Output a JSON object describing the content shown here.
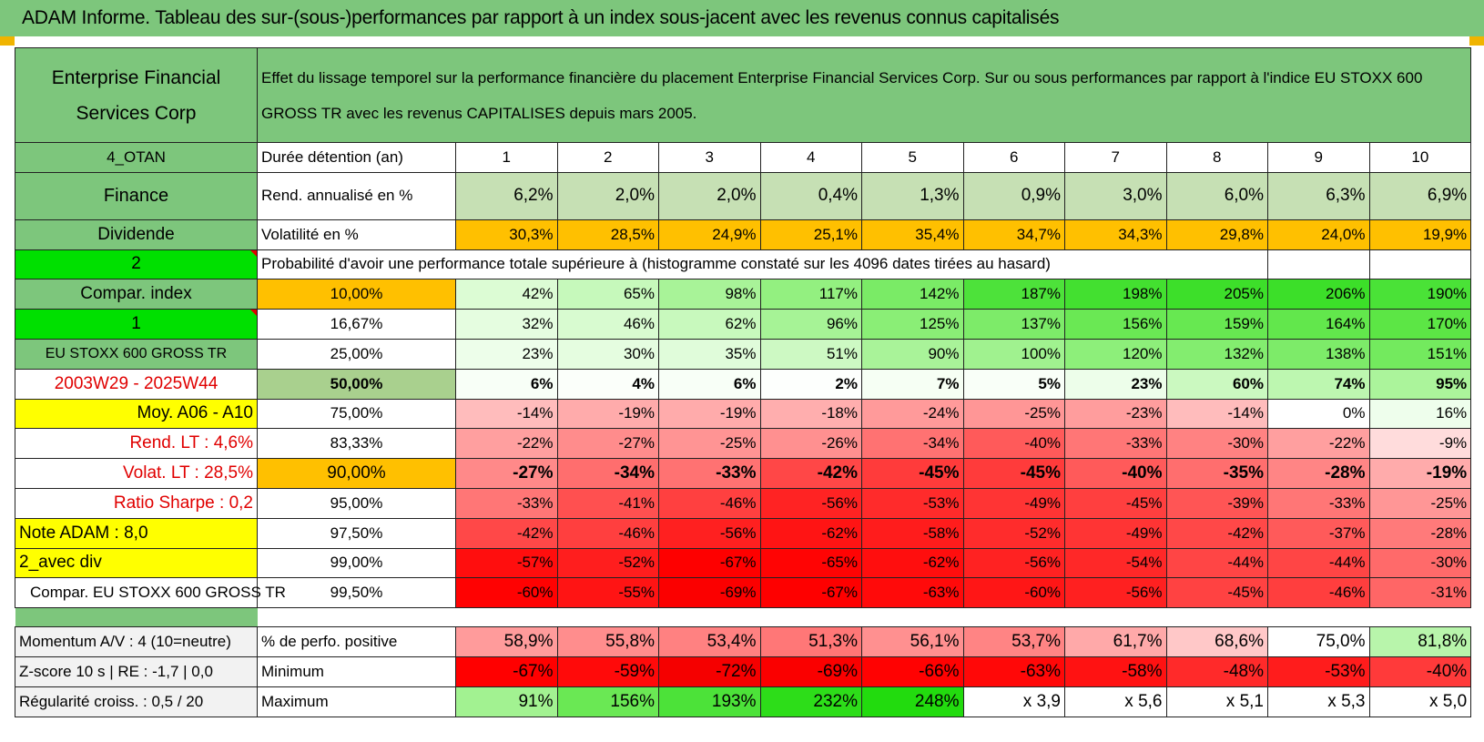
{
  "title": "ADAM Informe. Tableau des sur-(sous-)performances par rapport à un index sous-jacent avec les revenus connus capitalisés",
  "header": {
    "company": "Enterprise Financial Services Corp",
    "description": "Effet du lissage temporel sur la performance financière du placement Enterprise Financial Services Corp. Sur ou sous performances par rapport à l'indice EU STOXX 600 GROSS TR avec les revenus CAPITALISES depuis mars 2005."
  },
  "labels": {
    "otan": "4_OTAN",
    "finance": "Finance",
    "dividende": "Dividende",
    "two": "2",
    "compar_index": "Compar. index",
    "one": "1",
    "index_name": "EU STOXX 600 GROSS TR",
    "period": "2003W29 - 2025W44",
    "moy": "Moy. A06 - A10",
    "rend_lt": "Rend. LT :    4,6%",
    "volat_lt": "Volat. LT :    28,5%",
    "sharpe": "Ratio Sharpe :    0,2",
    "note": "Note ADAM : 8,0",
    "avec_div": "2_avec div",
    "compar_eu": "Compar. EU STOXX 600 GROSS TR",
    "momentum": "Momentum A/V : 4 (10=neutre)",
    "zscore": "Z-score 10 s | RE : -1,7 | 0,0",
    "regularite": "Régularité croiss. : 0,5 / 20"
  },
  "stats": {
    "duree_label": "Durée détention (an)",
    "years": [
      "1",
      "2",
      "3",
      "4",
      "5",
      "6",
      "7",
      "8",
      "9",
      "10"
    ],
    "rend_label": "Rend. annualisé en %",
    "rend": [
      "6,2%",
      "2,0%",
      "2,0%",
      "0,4%",
      "1,3%",
      "0,9%",
      "3,0%",
      "6,0%",
      "6,3%",
      "6,9%"
    ],
    "vol_label": "Volatilité en %",
    "vol": [
      "30,3%",
      "28,5%",
      "24,9%",
      "25,1%",
      "35,4%",
      "34,7%",
      "34,3%",
      "29,8%",
      "24,0%",
      "19,9%"
    ],
    "prob_header": "Probabilité d'avoir une performance totale supérieure à (histogramme constaté sur les 4096 dates tirées au hasard)"
  },
  "quantile_rows": [
    {
      "q": "10,00%",
      "values": [
        "42%",
        "65%",
        "98%",
        "117%",
        "142%",
        "187%",
        "198%",
        "205%",
        "206%",
        "190%"
      ]
    },
    {
      "q": "16,67%",
      "values": [
        "32%",
        "46%",
        "62%",
        "96%",
        "125%",
        "137%",
        "156%",
        "159%",
        "164%",
        "170%"
      ]
    },
    {
      "q": "25,00%",
      "values": [
        "23%",
        "30%",
        "35%",
        "51%",
        "90%",
        "100%",
        "120%",
        "132%",
        "138%",
        "151%"
      ]
    },
    {
      "q": "50,00%",
      "values": [
        "6%",
        "4%",
        "6%",
        "2%",
        "7%",
        "5%",
        "23%",
        "60%",
        "74%",
        "95%"
      ]
    },
    {
      "q": "75,00%",
      "values": [
        "-14%",
        "-19%",
        "-19%",
        "-18%",
        "-24%",
        "-25%",
        "-23%",
        "-14%",
        "0%",
        "16%"
      ]
    },
    {
      "q": "83,33%",
      "values": [
        "-22%",
        "-27%",
        "-25%",
        "-26%",
        "-34%",
        "-40%",
        "-33%",
        "-30%",
        "-22%",
        "-9%"
      ]
    },
    {
      "q": "90,00%",
      "values": [
        "-27%",
        "-34%",
        "-33%",
        "-42%",
        "-45%",
        "-45%",
        "-40%",
        "-35%",
        "-28%",
        "-19%"
      ]
    },
    {
      "q": "95,00%",
      "values": [
        "-33%",
        "-41%",
        "-46%",
        "-56%",
        "-53%",
        "-49%",
        "-45%",
        "-39%",
        "-33%",
        "-25%"
      ]
    },
    {
      "q": "97,50%",
      "values": [
        "-42%",
        "-46%",
        "-56%",
        "-62%",
        "-58%",
        "-52%",
        "-49%",
        "-42%",
        "-37%",
        "-28%"
      ]
    },
    {
      "q": "99,00%",
      "values": [
        "-57%",
        "-52%",
        "-67%",
        "-65%",
        "-62%",
        "-56%",
        "-54%",
        "-44%",
        "-44%",
        "-30%"
      ]
    },
    {
      "q": "99,50%",
      "values": [
        "-60%",
        "-55%",
        "-69%",
        "-67%",
        "-63%",
        "-60%",
        "-56%",
        "-45%",
        "-46%",
        "-31%"
      ]
    }
  ],
  "bottom": {
    "pos_label": "% de perfo. positive",
    "pos": [
      "58,9%",
      "55,8%",
      "53,4%",
      "51,3%",
      "56,1%",
      "53,7%",
      "61,7%",
      "68,6%",
      "75,0%",
      "81,8%"
    ],
    "min_label": "Minimum",
    "min": [
      "-67%",
      "-59%",
      "-72%",
      "-69%",
      "-66%",
      "-63%",
      "-58%",
      "-48%",
      "-53%",
      "-40%"
    ],
    "max_label": "Maximum",
    "max": [
      "91%",
      "156%",
      "193%",
      "232%",
      "248%",
      "x 3,9",
      "x 5,6",
      "x 5,1",
      "x 5,3",
      "x 5,0"
    ]
  },
  "colors": {
    "header_green": "#7dc67c",
    "bright_green": "#00e000",
    "yellow": "#ffff00",
    "orange": "#ffc000",
    "red_text": "#e00000"
  }
}
